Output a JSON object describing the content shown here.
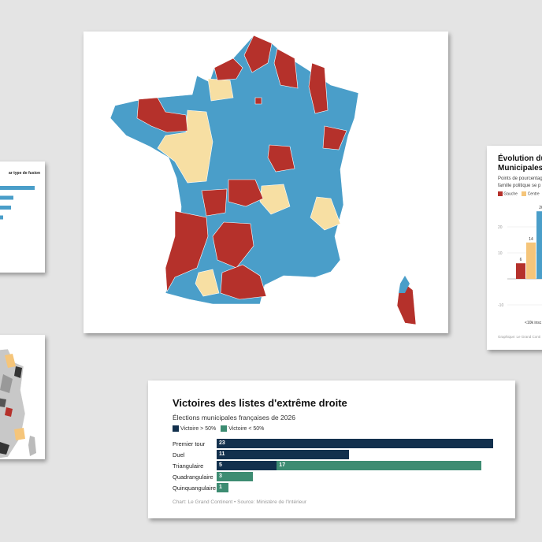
{
  "colors": {
    "dark": "#12304d",
    "green": "#3d8c72",
    "blue": "#4a9ec9",
    "red": "#b5312b",
    "yellow": "#f7dfa3",
    "gauche": "#b5312b",
    "centre": "#f5c57a"
  },
  "bar_chart": {
    "title": "Victoires des listes d'extrême droite",
    "subtitle": "Élections municipales françaises de 2026",
    "legend": [
      "Victoire > 50%",
      "Victoire < 50%"
    ],
    "source": "Chart: Le Grand Continent • Source: Ministère de l'Intérieur"
  },
  "right_card": {
    "title_line1": "Évolution du",
    "title_line2": "Municipales 2",
    "subtitle_line1": "Points de pourcentag",
    "subtitle_line2": "famille politique se p",
    "legend": [
      "Gauche",
      "Centre"
    ],
    "yticks": [
      "20",
      "10",
      "-10"
    ],
    "xlabel": "<10k insc",
    "source": "Graphique: Le Grand Conti"
  },
  "left_card": {
    "title": "ar type de fusion"
  },
  "chart_data": [
    {
      "type": "bar",
      "orientation": "horizontal",
      "stacked": true,
      "title": "Victoires des listes d'extrême droite",
      "subtitle": "Élections municipales françaises de 2026",
      "categories": [
        "Premier tour",
        "Duel",
        "Triangulaire",
        "Quadrangulaire",
        "Quinquangulaire"
      ],
      "series": [
        {
          "name": "Victoire > 50%",
          "values": [
            23,
            11,
            5,
            0,
            0
          ]
        },
        {
          "name": "Victoire < 50%",
          "values": [
            0,
            0,
            17,
            3,
            1
          ]
        }
      ],
      "legend": "top-left",
      "grid": false
    },
    {
      "type": "bar",
      "partial": true,
      "series": [
        {
          "name": "Gauche",
          "values": [
            6
          ]
        },
        {
          "name": "Centre",
          "values": [
            14
          ]
        },
        {
          "values": [
            26
          ]
        }
      ],
      "categories": [
        "<10k insc"
      ],
      "ylim": [
        -10,
        30
      ],
      "yticks": [
        20,
        10,
        -10
      ]
    },
    {
      "type": "bar",
      "orientation": "horizontal",
      "partial": true,
      "values": [
        44,
        17,
        14,
        4
      ],
      "title": "ar type de fusion"
    }
  ]
}
